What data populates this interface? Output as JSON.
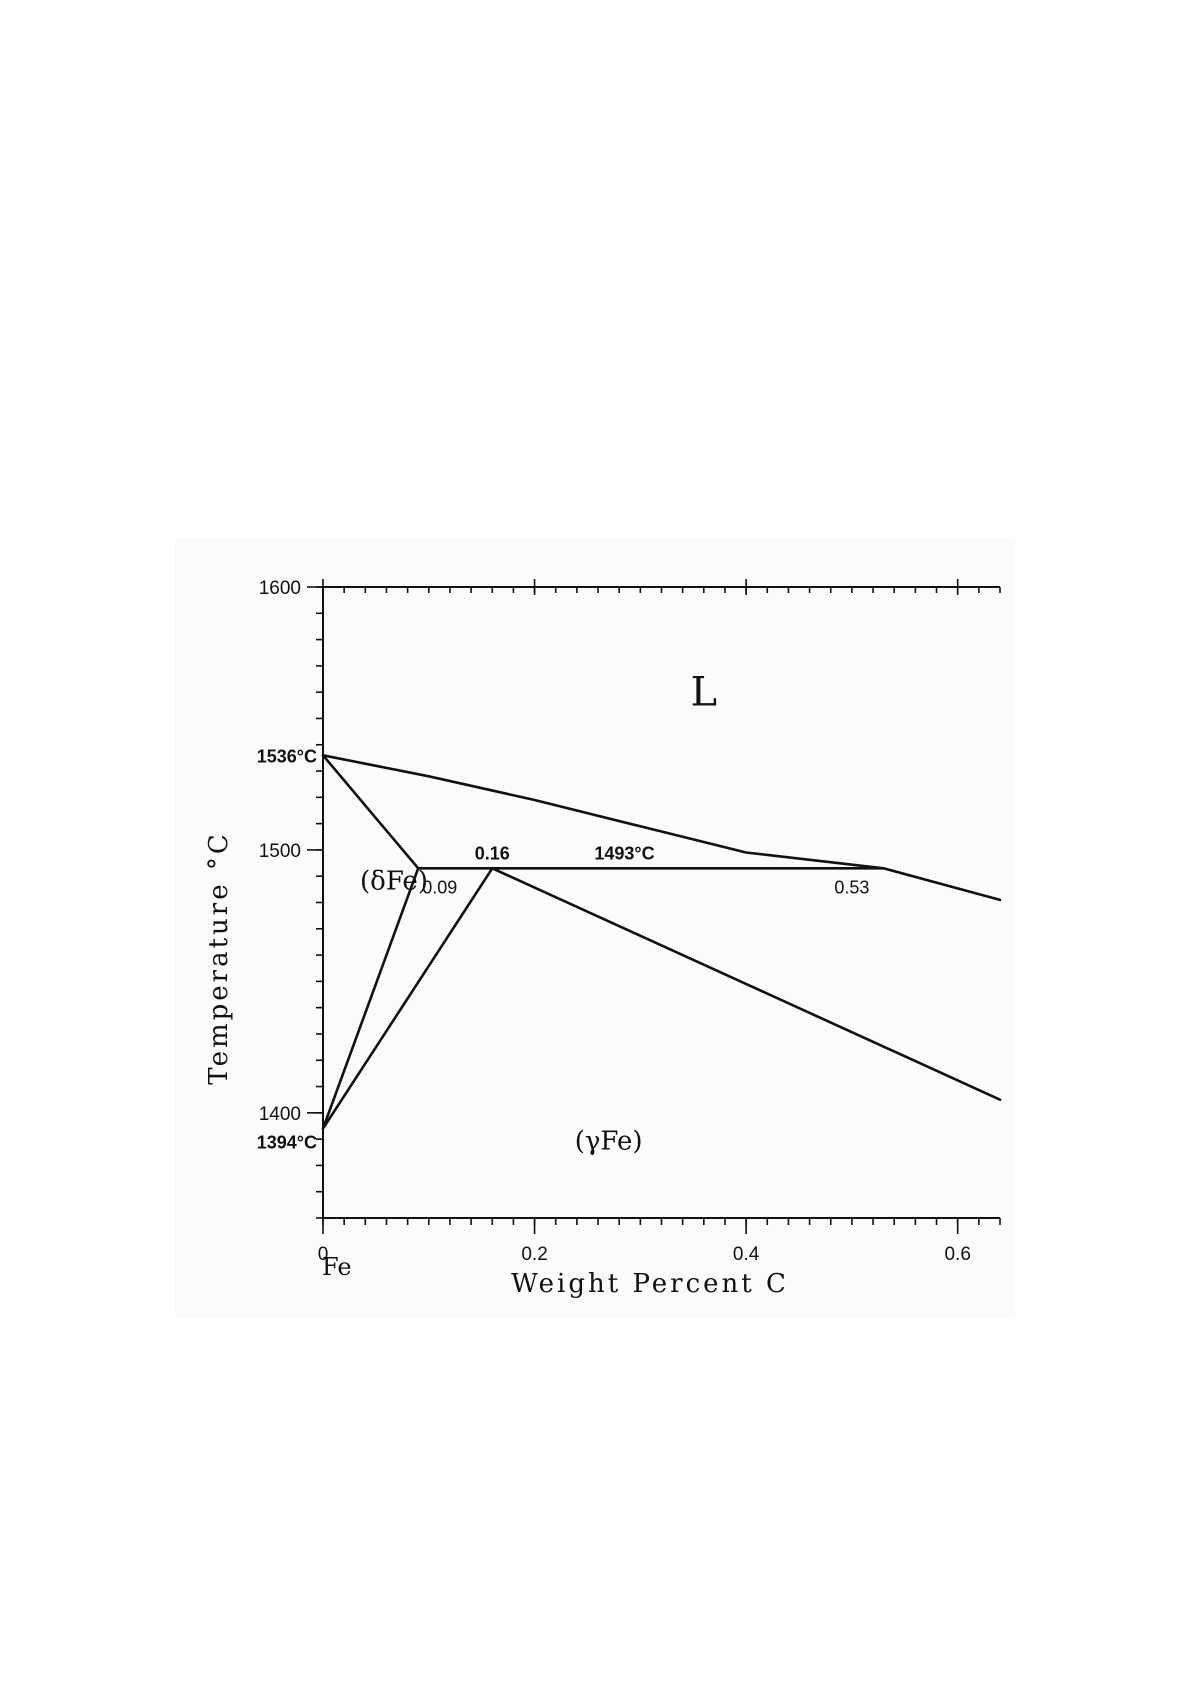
{
  "chart_data": {
    "type": "line",
    "title": "",
    "xlabel": "Weight Percent C",
    "ylabel": "Temperature °C",
    "xlim": [
      0,
      0.64
    ],
    "ylim": [
      1360,
      1600
    ],
    "x_ticks": [
      {
        "value": 0,
        "label": "0"
      },
      {
        "value": 0.2,
        "label": "0.2"
      },
      {
        "value": 0.4,
        "label": "0.4"
      },
      {
        "value": 0.6,
        "label": "0.6"
      }
    ],
    "y_ticks": [
      {
        "value": 1400,
        "label": "1400"
      },
      {
        "value": 1500,
        "label": "1500"
      },
      {
        "value": 1600,
        "label": "1600"
      }
    ],
    "x_minor_step": 0.02,
    "y_minor_step": 10,
    "fe_label": "Fe",
    "series": [
      {
        "key": "liquidus",
        "points": [
          [
            0,
            1536
          ],
          [
            0.1,
            1528
          ],
          [
            0.2,
            1519
          ],
          [
            0.3,
            1509
          ],
          [
            0.4,
            1499
          ],
          [
            0.53,
            1493
          ],
          [
            0.64,
            1481
          ]
        ]
      },
      {
        "key": "delta_liquidus",
        "points": [
          [
            0,
            1536
          ],
          [
            0.09,
            1493
          ]
        ]
      },
      {
        "key": "peritectic",
        "points": [
          [
            0.09,
            1493
          ],
          [
            0.53,
            1493
          ]
        ]
      },
      {
        "key": "delta_solvus",
        "points": [
          [
            0,
            1394
          ],
          [
            0.09,
            1493
          ]
        ]
      },
      {
        "key": "gamma_solvus",
        "points": [
          [
            0,
            1394
          ],
          [
            0.16,
            1493
          ]
        ]
      },
      {
        "key": "gamma_solidus",
        "points": [
          [
            0.16,
            1493
          ],
          [
            0.64,
            1405
          ]
        ]
      }
    ],
    "annotations": [
      {
        "text": "1536°C",
        "x": 0,
        "y": 1536,
        "anchor": "end",
        "bold": true
      },
      {
        "text": "1394°C",
        "x": 0,
        "y": 1394,
        "anchor": "end",
        "bold": true
      },
      {
        "text": "0.09",
        "x": 0.09,
        "y": 1493,
        "anchor": "start",
        "bold": false
      },
      {
        "text": "0.16",
        "x": 0.16,
        "y": 1493,
        "anchor": "middle",
        "bold": true
      },
      {
        "text": "1493°C",
        "x": 0.285,
        "y": 1493,
        "anchor": "middle",
        "bold": true
      },
      {
        "text": "0.53",
        "x": 0.5,
        "y": 1493,
        "anchor": "middle",
        "bold": false
      }
    ],
    "phase_labels": [
      {
        "text": "L",
        "x": 0.36,
        "y": 1555
      },
      {
        "text": "(δFe)",
        "x": 0.035,
        "y": 1485
      },
      {
        "text": "(γFe)",
        "x": 0.27,
        "y": 1386
      }
    ]
  }
}
